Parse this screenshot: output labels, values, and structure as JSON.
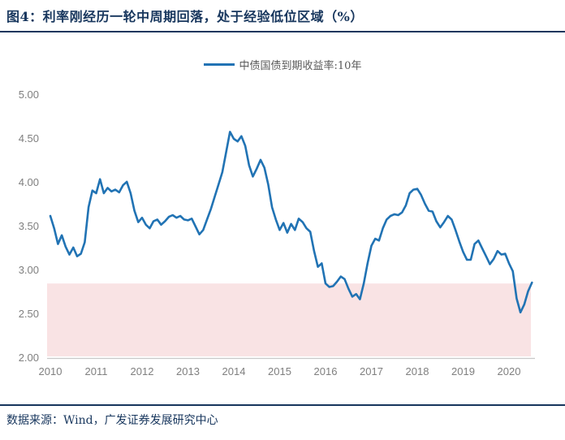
{
  "header": {
    "title": "图4：利率刚经历一轮中周期回落，处于经验低位区域（%）"
  },
  "footer": {
    "source": "数据来源：Wind，广发证券发展研究中心"
  },
  "chart_data": {
    "type": "line",
    "title": "利率刚经历一轮中周期回落，处于经验低位区域（%）",
    "legend": "中债国债到期收益率:10年",
    "xlabel": "",
    "ylabel": "",
    "x_ticks": [
      2010,
      2011,
      2012,
      2013,
      2014,
      2015,
      2016,
      2017,
      2018,
      2019,
      2020
    ],
    "y_ticks": [
      5.0,
      4.5,
      4.0,
      3.5,
      3.0,
      2.5,
      2.0
    ],
    "ylim": [
      2.0,
      5.0
    ],
    "xlim": [
      2009.93,
      2020.55
    ],
    "grid": false,
    "legend_position": "top-center",
    "highlight_band": {
      "from": 2.0,
      "to": 2.85,
      "color": "#f9e3e4"
    },
    "colors": {
      "line": "#2173b4",
      "band": "#f9e3e4",
      "tick_label": "#7f7f7f",
      "axis_line": "#c9c9c9",
      "navy": "#17365d",
      "legend_text": "#595959"
    },
    "series": [
      {
        "name": "中债国债到期收益率:10年",
        "start": "2010-01",
        "freq": "monthly",
        "values": [
          3.62,
          3.48,
          3.3,
          3.4,
          3.27,
          3.18,
          3.26,
          3.16,
          3.19,
          3.32,
          3.72,
          3.91,
          3.88,
          4.04,
          3.88,
          3.94,
          3.9,
          3.92,
          3.89,
          3.97,
          4.01,
          3.88,
          3.68,
          3.55,
          3.6,
          3.52,
          3.48,
          3.56,
          3.58,
          3.52,
          3.56,
          3.61,
          3.63,
          3.6,
          3.62,
          3.58,
          3.57,
          3.59,
          3.5,
          3.41,
          3.46,
          3.58,
          3.7,
          3.84,
          3.98,
          4.12,
          4.35,
          4.58,
          4.5,
          4.47,
          4.53,
          4.42,
          4.2,
          4.07,
          4.16,
          4.26,
          4.17,
          3.98,
          3.72,
          3.58,
          3.46,
          3.54,
          3.43,
          3.53,
          3.46,
          3.59,
          3.55,
          3.48,
          3.44,
          3.22,
          3.04,
          3.08,
          2.85,
          2.81,
          2.82,
          2.87,
          2.93,
          2.9,
          2.79,
          2.7,
          2.73,
          2.67,
          2.85,
          3.08,
          3.28,
          3.36,
          3.34,
          3.48,
          3.58,
          3.62,
          3.64,
          3.63,
          3.66,
          3.74,
          3.88,
          3.92,
          3.93,
          3.86,
          3.76,
          3.68,
          3.67,
          3.56,
          3.49,
          3.55,
          3.62,
          3.58,
          3.46,
          3.33,
          3.21,
          3.12,
          3.12,
          3.3,
          3.34,
          3.25,
          3.16,
          3.07,
          3.13,
          3.22,
          3.18,
          3.19,
          3.08,
          2.99,
          2.68,
          2.52,
          2.61,
          2.76,
          2.86
        ]
      }
    ]
  }
}
